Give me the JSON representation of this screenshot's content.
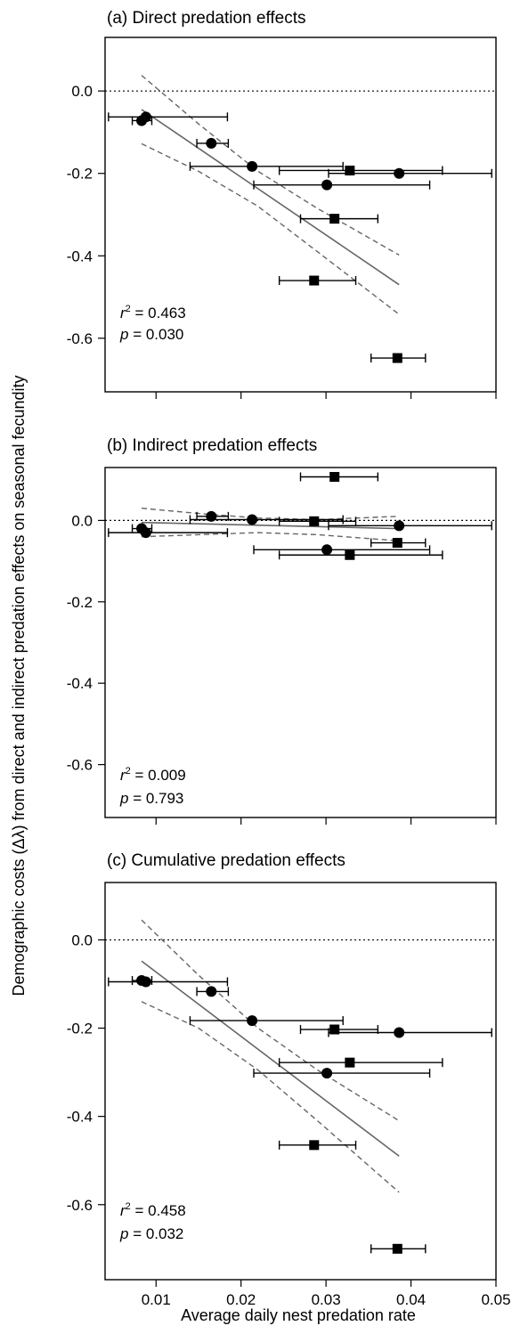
{
  "figure": {
    "ylabel": "Demographic costs (Δλ) from direct and indirect predation effects on seasonal fecundity",
    "xlabel": "Average daily nest predation rate"
  },
  "chart_data": [
    {
      "type": "scatter",
      "title": "(a) Direct predation effects",
      "xlim": [
        0.004,
        0.05
      ],
      "ylim": [
        -0.73,
        0.13
      ],
      "x_ticks": [
        0.01,
        0.02,
        0.03,
        0.04,
        0.05
      ],
      "x_tick_labels": [
        "0.01",
        "0.02",
        "0.03",
        "0.04",
        "0.05"
      ],
      "y_ticks": [
        0.0,
        -0.2,
        -0.4,
        -0.6
      ],
      "y_tick_labels": [
        "0.0",
        "-0.2",
        "-0.4",
        "-0.6"
      ],
      "reference_line_y": 0.0,
      "stats": {
        "r2_label": "r",
        "r2_sup": "2",
        "r2_value": " = 0.463",
        "p_label": "p",
        "p_value": " = 0.030"
      },
      "series": [
        {
          "marker": "circle",
          "points": [
            {
              "x": 0.0083,
              "y": -0.072,
              "xmin": 0.0072,
              "xmax": 0.0095
            },
            {
              "x": 0.0088,
              "y": -0.063,
              "xmin": 0.0044,
              "xmax": 0.0184
            },
            {
              "x": 0.0165,
              "y": -0.127,
              "xmin": 0.0148,
              "xmax": 0.0185
            },
            {
              "x": 0.0213,
              "y": -0.183,
              "xmin": 0.014,
              "xmax": 0.032
            },
            {
              "x": 0.0301,
              "y": -0.228,
              "xmin": 0.0215,
              "xmax": 0.0422
            },
            {
              "x": 0.0386,
              "y": -0.2,
              "xmin": 0.0303,
              "xmax": 0.0495
            }
          ]
        },
        {
          "marker": "square",
          "points": [
            {
              "x": 0.0286,
              "y": -0.46,
              "xmin": 0.0245,
              "xmax": 0.0335
            },
            {
              "x": 0.031,
              "y": -0.31,
              "xmin": 0.027,
              "xmax": 0.0361
            },
            {
              "x": 0.0328,
              "y": -0.193,
              "xmin": 0.0245,
              "xmax": 0.0437
            },
            {
              "x": 0.0384,
              "y": -0.648,
              "xmin": 0.0353,
              "xmax": 0.0417
            }
          ]
        }
      ],
      "regression": {
        "x": [
          0.0083,
          0.0386
        ],
        "y": [
          -0.045,
          -0.47
        ]
      },
      "ci_upper": {
        "x": [
          0.0083,
          0.015,
          0.022,
          0.029,
          0.0386
        ],
        "y": [
          0.038,
          -0.08,
          -0.195,
          -0.285,
          -0.398
        ]
      },
      "ci_lower": {
        "x": [
          0.0083,
          0.015,
          0.022,
          0.029,
          0.0386
        ],
        "y": [
          -0.128,
          -0.195,
          -0.28,
          -0.39,
          -0.542
        ]
      }
    },
    {
      "type": "scatter",
      "title": "(b) Indirect predation effects",
      "xlim": [
        0.004,
        0.05
      ],
      "ylim": [
        -0.73,
        0.13
      ],
      "x_ticks": [
        0.01,
        0.02,
        0.03,
        0.04,
        0.05
      ],
      "x_tick_labels": [
        "0.01",
        "0.02",
        "0.03",
        "0.04",
        "0.05"
      ],
      "y_ticks": [
        0.0,
        -0.2,
        -0.4,
        -0.6
      ],
      "y_tick_labels": [
        "0.0",
        "-0.2",
        "-0.4",
        "-0.6"
      ],
      "reference_line_y": 0.0,
      "stats": {
        "r2_label": "r",
        "r2_sup": "2",
        "r2_value": " = 0.009",
        "p_label": "p",
        "p_value": " = 0.793"
      },
      "series": [
        {
          "marker": "circle",
          "points": [
            {
              "x": 0.0083,
              "y": -0.02,
              "xmin": 0.0072,
              "xmax": 0.0095
            },
            {
              "x": 0.0088,
              "y": -0.03,
              "xmin": 0.0044,
              "xmax": 0.0184
            },
            {
              "x": 0.0165,
              "y": 0.01,
              "xmin": 0.0148,
              "xmax": 0.0185
            },
            {
              "x": 0.0213,
              "y": 0.002,
              "xmin": 0.014,
              "xmax": 0.032
            },
            {
              "x": 0.0301,
              "y": -0.072,
              "xmin": 0.0215,
              "xmax": 0.0422
            },
            {
              "x": 0.0386,
              "y": -0.013,
              "xmin": 0.0303,
              "xmax": 0.0495
            }
          ]
        },
        {
          "marker": "square",
          "points": [
            {
              "x": 0.0286,
              "y": -0.002,
              "xmin": 0.0245,
              "xmax": 0.0335
            },
            {
              "x": 0.031,
              "y": 0.107,
              "xmin": 0.027,
              "xmax": 0.0361
            },
            {
              "x": 0.0328,
              "y": -0.085,
              "xmin": 0.0245,
              "xmax": 0.0437
            },
            {
              "x": 0.0384,
              "y": -0.055,
              "xmin": 0.0353,
              "xmax": 0.0417
            }
          ]
        }
      ],
      "regression": {
        "x": [
          0.0083,
          0.0386
        ],
        "y": [
          -0.005,
          -0.02
        ]
      },
      "ci_upper": {
        "x": [
          0.0083,
          0.015,
          0.022,
          0.029,
          0.0386
        ],
        "y": [
          0.03,
          0.017,
          0.006,
          0.002,
          0.01
        ]
      },
      "ci_lower": {
        "x": [
          0.0083,
          0.015,
          0.022,
          0.029,
          0.0386
        ],
        "y": [
          -0.04,
          -0.035,
          -0.03,
          -0.035,
          -0.05
        ]
      }
    },
    {
      "type": "scatter",
      "title": "(c) Cumulative predation effects",
      "xlim": [
        0.004,
        0.05
      ],
      "ylim": [
        -0.77,
        0.13
      ],
      "x_ticks": [
        0.01,
        0.02,
        0.03,
        0.04,
        0.05
      ],
      "x_tick_labels": [
        "0.01",
        "0.02",
        "0.03",
        "0.04",
        "0.05"
      ],
      "y_ticks": [
        0.0,
        -0.2,
        -0.4,
        -0.6
      ],
      "y_tick_labels": [
        "0.0",
        "-0.2",
        "-0.4",
        "-0.6"
      ],
      "reference_line_y": 0.0,
      "stats": {
        "r2_label": "r",
        "r2_sup": "2",
        "r2_value": " = 0.458",
        "p_label": "p",
        "p_value": " = 0.032"
      },
      "series": [
        {
          "marker": "circle",
          "points": [
            {
              "x": 0.0083,
              "y": -0.092,
              "xmin": 0.0072,
              "xmax": 0.0095
            },
            {
              "x": 0.0088,
              "y": -0.095,
              "xmin": 0.0044,
              "xmax": 0.0184
            },
            {
              "x": 0.0165,
              "y": -0.117,
              "xmin": 0.0148,
              "xmax": 0.0185
            },
            {
              "x": 0.0213,
              "y": -0.183,
              "xmin": 0.014,
              "xmax": 0.032
            },
            {
              "x": 0.0301,
              "y": -0.302,
              "xmin": 0.0215,
              "xmax": 0.0422
            },
            {
              "x": 0.0386,
              "y": -0.21,
              "xmin": 0.0303,
              "xmax": 0.0495
            }
          ]
        },
        {
          "marker": "square",
          "points": [
            {
              "x": 0.0286,
              "y": -0.465,
              "xmin": 0.0245,
              "xmax": 0.0335
            },
            {
              "x": 0.031,
              "y": -0.203,
              "xmin": 0.027,
              "xmax": 0.0361
            },
            {
              "x": 0.0328,
              "y": -0.278,
              "xmin": 0.0245,
              "xmax": 0.0437
            },
            {
              "x": 0.0384,
              "y": -0.7,
              "xmin": 0.0353,
              "xmax": 0.0417
            }
          ]
        }
      ],
      "regression": {
        "x": [
          0.0083,
          0.0386
        ],
        "y": [
          -0.048,
          -0.49
        ]
      },
      "ci_upper": {
        "x": [
          0.0083,
          0.015,
          0.022,
          0.029,
          0.0386
        ],
        "y": [
          0.045,
          -0.08,
          -0.2,
          -0.295,
          -0.41
        ]
      },
      "ci_lower": {
        "x": [
          0.0083,
          0.015,
          0.022,
          0.029,
          0.0386
        ],
        "y": [
          -0.14,
          -0.2,
          -0.295,
          -0.41,
          -0.572
        ]
      }
    }
  ]
}
